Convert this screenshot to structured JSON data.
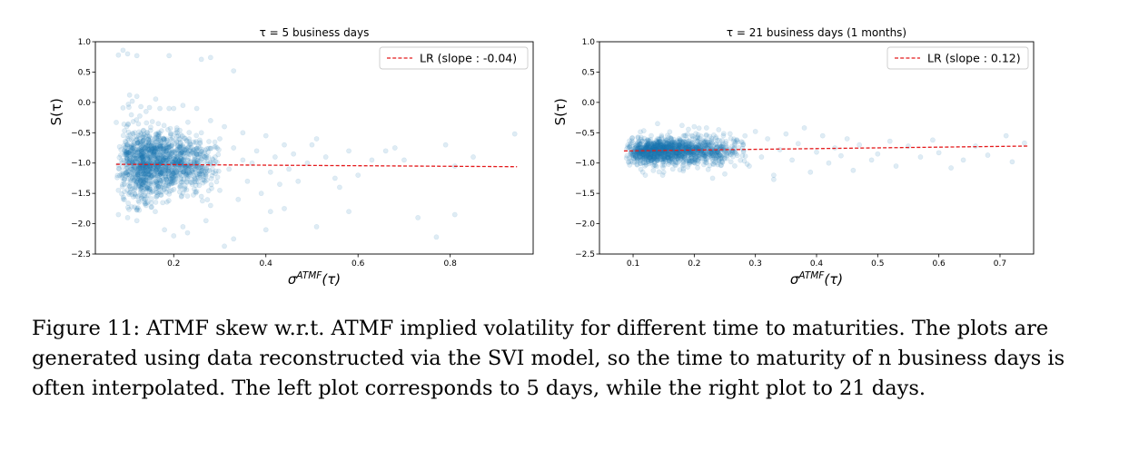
{
  "chart_data": [
    {
      "type": "scatter",
      "title": "τ = 5 business days",
      "xlabel": "σ^ATMF(τ)",
      "ylabel": "S(τ)",
      "xlim": [
        0.03,
        0.98
      ],
      "ylim": [
        -2.5,
        1.0
      ],
      "x_ticks": [
        0.2,
        0.4,
        0.6,
        0.8
      ],
      "x_tick_labels": [
        "0.2",
        "0.4",
        "0.6",
        "0.8"
      ],
      "y_ticks": [
        1.0,
        0.5,
        0.0,
        -0.5,
        -1.0,
        -1.5,
        -2.0,
        -2.5
      ],
      "y_tick_labels": [
        "1.0",
        "0.5",
        "0.0",
        "−0.5",
        "−1.0",
        "−1.5",
        "−2.0",
        "−2.5"
      ],
      "grid": false,
      "legend_position": "top-right",
      "series": [
        {
          "kind": "points",
          "color": "#1f77b4",
          "alpha": 0.14,
          "points": [
            [
              0.08,
              0.78
            ],
            [
              0.09,
              0.86
            ],
            [
              0.1,
              0.8
            ],
            [
              0.12,
              0.77
            ],
            [
              0.19,
              0.77
            ],
            [
              0.26,
              0.71
            ],
            [
              0.28,
              0.74
            ],
            [
              0.33,
              0.52
            ],
            [
              0.09,
              -0.09
            ],
            [
              0.11,
              0.02
            ],
            [
              0.12,
              0.1
            ],
            [
              0.14,
              -0.15
            ],
            [
              0.17,
              -0.1
            ],
            [
              0.2,
              -0.1
            ],
            [
              0.22,
              -0.05
            ],
            [
              0.25,
              -0.1
            ],
            [
              0.19,
              -0.1
            ],
            [
              0.08,
              -1.85
            ],
            [
              0.1,
              -1.9
            ],
            [
              0.12,
              -1.95
            ],
            [
              0.14,
              -1.7
            ],
            [
              0.16,
              -1.8
            ],
            [
              0.18,
              -2.1
            ],
            [
              0.2,
              -2.2
            ],
            [
              0.23,
              -2.15
            ],
            [
              0.31,
              -2.37
            ],
            [
              0.33,
              -2.25
            ],
            [
              0.27,
              -1.95
            ],
            [
              0.22,
              -2.05
            ],
            [
              0.4,
              -2.1
            ],
            [
              0.41,
              -1.8
            ],
            [
              0.44,
              -1.75
            ],
            [
              0.51,
              -2.05
            ],
            [
              0.58,
              -1.8
            ],
            [
              0.73,
              -1.9
            ],
            [
              0.77,
              -2.22
            ],
            [
              0.81,
              -1.85
            ],
            [
              0.94,
              -0.52
            ],
            [
              0.81,
              -1.05
            ],
            [
              0.85,
              -0.9
            ],
            [
              0.79,
              -0.7
            ],
            [
              0.7,
              -0.95
            ],
            [
              0.68,
              -0.75
            ],
            [
              0.66,
              -0.8
            ],
            [
              0.63,
              -0.95
            ],
            [
              0.6,
              -1.2
            ],
            [
              0.58,
              -0.8
            ],
            [
              0.56,
              -1.4
            ],
            [
              0.55,
              -1.25
            ],
            [
              0.53,
              -0.9
            ],
            [
              0.51,
              -0.6
            ],
            [
              0.5,
              -0.7
            ],
            [
              0.49,
              -1.0
            ],
            [
              0.47,
              -1.3
            ],
            [
              0.46,
              -0.85
            ],
            [
              0.45,
              -1.1
            ],
            [
              0.44,
              -0.7
            ],
            [
              0.43,
              -1.35
            ],
            [
              0.42,
              -0.9
            ],
            [
              0.41,
              -1.15
            ],
            [
              0.4,
              -0.55
            ],
            [
              0.39,
              -1.5
            ],
            [
              0.38,
              -0.8
            ],
            [
              0.37,
              -1.0
            ],
            [
              0.36,
              -1.3
            ],
            [
              0.35,
              -0.5
            ],
            [
              0.35,
              -0.95
            ],
            [
              0.34,
              -1.6
            ],
            [
              0.33,
              -0.75
            ],
            [
              0.32,
              -1.1
            ],
            [
              0.31,
              -0.4
            ],
            [
              0.3,
              -1.45
            ],
            [
              0.3,
              -0.6
            ],
            [
              0.29,
              -0.9
            ],
            [
              0.28,
              -1.7
            ],
            [
              0.28,
              -0.3
            ],
            [
              0.27,
              -1.2
            ],
            [
              0.26,
              -0.5
            ],
            [
              0.26,
              -1.55
            ],
            [
              0.25,
              -0.85
            ],
            [
              0.24,
              -1.35
            ]
          ]
        },
        {
          "kind": "cloud",
          "color": "#1f77b4",
          "alpha": 0.14,
          "count": 1400,
          "seed": 11,
          "x_range": [
            0.075,
            0.3
          ],
          "x_mode": 0.13,
          "y_center": -1.0,
          "y_spread": 0.3,
          "y_spread_slope": -0.6
        }
      ],
      "line": {
        "label": "LR (slope : -0.04)",
        "color": "#e41a1c",
        "style": "dashed",
        "x": [
          0.075,
          0.945
        ],
        "y": [
          -1.02,
          -1.06
        ]
      }
    },
    {
      "type": "scatter",
      "title": "τ = 21 business days (1 months)",
      "xlabel": "σ^ATMF(τ)",
      "ylabel": "S(τ)",
      "xlim": [
        0.045,
        0.755
      ],
      "ylim": [
        -2.5,
        1.0
      ],
      "x_ticks": [
        0.1,
        0.2,
        0.3,
        0.4,
        0.5,
        0.6,
        0.7
      ],
      "x_tick_labels": [
        "0.1",
        "0.2",
        "0.3",
        "0.4",
        "0.5",
        "0.6",
        "0.7"
      ],
      "y_ticks": [
        1.0,
        0.5,
        0.0,
        -0.5,
        -1.0,
        -1.5,
        -2.0,
        -2.5
      ],
      "y_tick_labels": [
        "1.0",
        "0.5",
        "0.0",
        "−0.5",
        "−1.0",
        "−1.5",
        "−2.0",
        "−2.5"
      ],
      "grid": false,
      "legend_position": "top-right",
      "series": [
        {
          "kind": "points",
          "color": "#1f77b4",
          "alpha": 0.14,
          "points": [
            [
              0.74,
              -0.67
            ],
            [
              0.72,
              -0.98
            ],
            [
              0.71,
              -0.55
            ],
            [
              0.68,
              -0.87
            ],
            [
              0.66,
              -0.72
            ],
            [
              0.64,
              -0.95
            ],
            [
              0.62,
              -1.08
            ],
            [
              0.6,
              -0.83
            ],
            [
              0.59,
              -0.62
            ],
            [
              0.57,
              -0.9
            ],
            [
              0.55,
              -0.72
            ],
            [
              0.53,
              -1.05
            ],
            [
              0.52,
              -0.64
            ],
            [
              0.5,
              -0.85
            ],
            [
              0.49,
              -0.95
            ],
            [
              0.47,
              -0.7
            ],
            [
              0.46,
              -1.12
            ],
            [
              0.45,
              -0.6
            ],
            [
              0.44,
              -0.88
            ],
            [
              0.43,
              -0.75
            ],
            [
              0.42,
              -1.0
            ],
            [
              0.41,
              -0.55
            ],
            [
              0.4,
              -0.82
            ],
            [
              0.39,
              -1.15
            ],
            [
              0.38,
              -0.42
            ],
            [
              0.37,
              -0.68
            ],
            [
              0.36,
              -0.95
            ],
            [
              0.35,
              -0.52
            ],
            [
              0.34,
              -0.78
            ],
            [
              0.33,
              -1.2
            ],
            [
              0.32,
              -0.6
            ],
            [
              0.31,
              -0.9
            ],
            [
              0.3,
              -0.48
            ],
            [
              0.29,
              -1.05
            ],
            [
              0.28,
              -0.7
            ],
            [
              0.27,
              -0.62
            ],
            [
              0.26,
              -0.98
            ],
            [
              0.25,
              -1.18
            ],
            [
              0.24,
              -0.45
            ],
            [
              0.23,
              -1.25
            ],
            [
              0.33,
              -1.27
            ],
            [
              0.15,
              -1.15
            ],
            [
              0.12,
              -1.2
            ],
            [
              0.18,
              -0.38
            ],
            [
              0.14,
              -0.35
            ],
            [
              0.2,
              -0.4
            ],
            [
              0.22,
              -0.42
            ]
          ]
        },
        {
          "kind": "cloud",
          "color": "#1f77b4",
          "alpha": 0.14,
          "count": 1300,
          "seed": 23,
          "x_range": [
            0.085,
            0.29
          ],
          "x_mode": 0.13,
          "y_center": -0.8,
          "y_spread": 0.11,
          "y_spread_slope": 0.0
        }
      ],
      "line": {
        "label": "LR (slope : 0.12)",
        "color": "#e41a1c",
        "style": "dashed",
        "x": [
          0.085,
          0.745
        ],
        "y": [
          -0.8,
          -0.72
        ]
      }
    }
  ],
  "caption": "Figure 11: ATMF skew w.r.t. ATMF implied volatility for different time to maturities. The plots are generated using data reconstructed via the SVI model, so the time to maturity of n business days is often interpolated. The left plot corresponds to 5 days, while the right plot to 21 days."
}
